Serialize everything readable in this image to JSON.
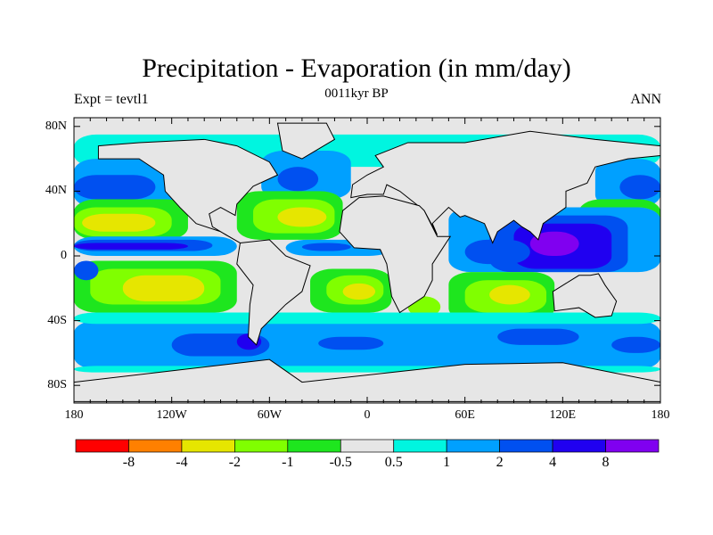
{
  "title": "Precipitation - Evaporation (in mm/day)",
  "subtitle": "0011kyr BP",
  "left_string": "Expt = tevtl1",
  "right_string": "ANN",
  "lat_labels": [
    "80N",
    "40N",
    "0",
    "40S",
    "80S"
  ],
  "lat_values": [
    80,
    40,
    0,
    -40,
    -80
  ],
  "lon_labels": [
    "180",
    "120W",
    "60W",
    "0",
    "60E",
    "120E",
    "180"
  ],
  "lon_values": [
    -180,
    -120,
    -60,
    0,
    60,
    120,
    180
  ],
  "colorbar": {
    "levels": [
      "-8",
      "-4",
      "-2",
      "-1",
      "-0.5",
      "0.5",
      "1",
      "2",
      "4",
      "8"
    ],
    "colors": [
      "#ff0000",
      "#ff8000",
      "#e6e600",
      "#80ff00",
      "#1ee61e",
      "#e6e6e6",
      "#00f5e0",
      "#00a0ff",
      "#0050f0",
      "#2000f0",
      "#8000f0"
    ]
  }
}
